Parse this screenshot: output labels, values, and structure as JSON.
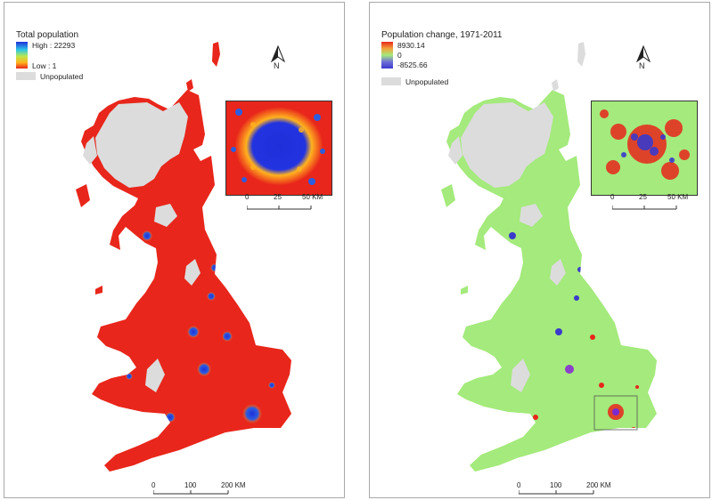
{
  "colors": {
    "unpopulated": "#dcdcdc",
    "high_total": "#1f2fd9",
    "low_total": "#e8261b",
    "change_positive": "#e8261b",
    "change_zero": "#a4ea7c",
    "change_negative": "#3a3acb"
  },
  "left_map": {
    "legend_title": "Total population",
    "high_label": "High : 22293",
    "low_label": "Low : 1",
    "unpopulated_label": "Unpopulated",
    "north_label": "N",
    "inset_scale": [
      "0",
      "25",
      "50 KM"
    ],
    "main_scale": [
      "0",
      "100",
      "200 KM"
    ]
  },
  "right_map": {
    "legend_title": "Population change, 1971-2011",
    "high_label": "8930.14",
    "mid_label": "0",
    "low_label": "-8525.66",
    "unpopulated_label": "Unpopulated",
    "north_label": "N",
    "inset_scale": [
      "0",
      "25",
      "50 KM"
    ],
    "main_scale": [
      "0",
      "100",
      "200 KM"
    ]
  }
}
